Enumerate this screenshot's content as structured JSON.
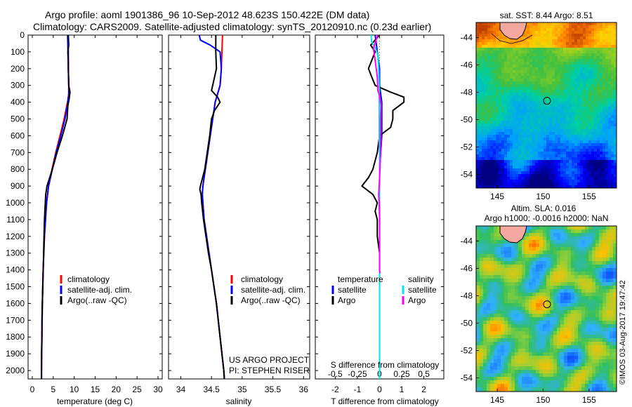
{
  "header": {
    "line1": "Argo profile: aoml 1901386_96 10-Sep-2012 48.623S 150.422E (DM data)",
    "line2": "Climatology: CARS2009. Satellite-adjusted climatology: synTS_20120910.nc (0.23d earlier)"
  },
  "colors": {
    "climatology": "#ff0000",
    "satellite": "#0000ff",
    "argo": "#000000",
    "salinity_satellite": "#00e5ee",
    "salinity_argo": "#ff00ff"
  },
  "credit": "©IMOS 03-Aug-2017 19:47:42",
  "chart_data": [
    {
      "id": "temperature-profile",
      "type": "line",
      "xlabel": "temperature (deg C)",
      "xlim": [
        -1,
        31
      ],
      "xticks": [
        0,
        5,
        10,
        15,
        20,
        25,
        30
      ],
      "ylim": [
        2050,
        0
      ],
      "yticks": [
        0,
        100,
        200,
        300,
        400,
        500,
        600,
        700,
        800,
        900,
        1000,
        1100,
        1200,
        1300,
        1400,
        1500,
        1600,
        1700,
        1800,
        1900,
        2000
      ],
      "legend": [
        "climatology",
        "satellite-adj. clim.",
        "Argo(..raw -QC)"
      ],
      "series": [
        {
          "name": "climatology",
          "color": "#ff0000",
          "depth": [
            0,
            100,
            200,
            300,
            350,
            400,
            500,
            600,
            700,
            800,
            900,
            1000,
            1200,
            1400,
            1600,
            1800,
            2000,
            2050
          ],
          "values": [
            8.4,
            8.5,
            8.6,
            8.7,
            8.7,
            8.4,
            7.6,
            6.6,
            5.6,
            4.7,
            3.9,
            3.4,
            2.9,
            2.6,
            2.4,
            2.3,
            2.2,
            2.2
          ]
        },
        {
          "name": "satellite-adj. clim.",
          "color": "#0000ff",
          "depth": [
            0,
            100,
            200,
            300,
            350,
            400,
            500,
            600,
            700,
            800,
            900,
            1000,
            1200,
            1400,
            1600,
            1800,
            2000,
            2050
          ],
          "values": [
            8.5,
            8.6,
            8.6,
            8.7,
            8.7,
            8.5,
            7.8,
            6.8,
            5.7,
            4.8,
            3.9,
            3.4,
            2.9,
            2.6,
            2.4,
            2.3,
            2.2,
            2.2
          ]
        },
        {
          "name": "Argo(..raw -QC)",
          "color": "#000000",
          "depth": [
            0,
            60,
            100,
            150,
            200,
            300,
            340,
            380,
            420,
            500,
            600,
            700,
            800,
            900,
            950,
            1000,
            1100,
            1200,
            1300,
            1400,
            1500,
            1600,
            1700,
            1800,
            1900,
            2000,
            2050
          ],
          "values": [
            8.6,
            8.7,
            8.5,
            8.6,
            8.6,
            8.7,
            9.0,
            8.8,
            8.5,
            8.3,
            7.2,
            5.9,
            4.8,
            3.5,
            3.2,
            3.1,
            2.9,
            2.8,
            2.7,
            2.6,
            2.5,
            2.4,
            2.3,
            2.3,
            2.2,
            2.2,
            2.2
          ]
        }
      ]
    },
    {
      "id": "salinity-profile",
      "type": "line",
      "xlabel": "salinity",
      "xlim": [
        33.8,
        36.1
      ],
      "xticks": [
        34,
        34.5,
        35,
        35.5,
        36
      ],
      "ylim": [
        2050,
        0
      ],
      "legend": [
        "climatology",
        "satellite-adj. clim.",
        "Argo(..raw -QC)"
      ],
      "annotation": [
        "US ARGO PROJECT",
        "PI: STEPHEN RISER"
      ],
      "series": [
        {
          "name": "climatology",
          "color": "#ff0000",
          "depth": [
            0,
            100,
            200,
            300,
            350,
            400,
            500,
            600,
            700,
            800,
            900,
            950,
            1000,
            1100,
            1200,
            1300,
            1400,
            1500,
            1600,
            1800,
            2000,
            2050
          ],
          "values": [
            34.68,
            34.67,
            34.66,
            34.64,
            34.6,
            34.56,
            34.52,
            34.48,
            34.44,
            34.4,
            34.36,
            34.35,
            34.36,
            34.38,
            34.42,
            34.46,
            34.5,
            34.54,
            34.58,
            34.64,
            34.7,
            34.71
          ]
        },
        {
          "name": "satellite-adj. clim.",
          "color": "#0000ff",
          "depth": [
            0,
            30,
            60,
            100,
            200,
            300,
            350,
            400,
            500,
            600,
            700,
            800,
            900,
            950,
            1000,
            1100,
            1200,
            1300,
            1400,
            1500,
            1600,
            1800,
            2000,
            2050
          ],
          "values": [
            34.3,
            34.32,
            34.48,
            34.64,
            34.66,
            34.64,
            34.6,
            34.56,
            34.52,
            34.48,
            34.44,
            34.4,
            34.36,
            34.35,
            34.36,
            34.38,
            34.42,
            34.46,
            34.5,
            34.54,
            34.58,
            34.64,
            34.7,
            34.71
          ]
        },
        {
          "name": "Argo(..raw -QC)",
          "color": "#000000",
          "depth": [
            0,
            100,
            200,
            300,
            330,
            370,
            400,
            450,
            500,
            600,
            700,
            800,
            900,
            920,
            950,
            1000,
            1100,
            1200,
            1300,
            1400,
            1500,
            1600,
            1800,
            2000,
            2050
          ],
          "values": [
            34.57,
            34.57,
            34.58,
            34.52,
            34.5,
            34.6,
            34.64,
            34.55,
            34.5,
            34.47,
            34.43,
            34.39,
            34.32,
            34.31,
            34.33,
            34.34,
            34.37,
            34.41,
            34.45,
            34.5,
            34.54,
            34.58,
            34.64,
            34.7,
            34.71
          ]
        }
      ]
    },
    {
      "id": "difference-profile",
      "type": "line",
      "xlabel": "T difference from climatology",
      "xlabel_top": "S difference from climatology",
      "xlim": [
        -2.9,
        2.9
      ],
      "xticks": [
        -2,
        -1,
        0,
        1,
        2
      ],
      "top_ticklabels": [
        "-0.5",
        "-0.25",
        "0",
        "0.25",
        "0.5"
      ],
      "top_tick_positions": [
        -2,
        -1,
        0,
        1,
        2
      ],
      "ylim": [
        2050,
        0
      ],
      "legend_groups": [
        {
          "title": "temperature",
          "items": [
            "satellite",
            "Argo"
          ]
        },
        {
          "title": "salinity",
          "items": [
            "satellite",
            "Argo"
          ]
        }
      ],
      "series": [
        {
          "name": "temperature satellite",
          "color": "#0000ff",
          "depth": [
            0,
            100,
            200,
            300,
            400,
            500,
            600,
            800,
            1000,
            1200,
            1400,
            1600,
            1800,
            2000,
            2050
          ],
          "values": [
            -0.2,
            -0.1,
            0.0,
            0.0,
            0.1,
            0.1,
            0.1,
            0.0,
            0.0,
            0.0,
            0.0,
            0.0,
            0.0,
            0.0,
            0.0
          ]
        },
        {
          "name": "temperature Argo",
          "color": "#000000",
          "depth": [
            0,
            60,
            100,
            200,
            300,
            340,
            370,
            400,
            450,
            500,
            550,
            600,
            700,
            800,
            850,
            900,
            950,
            1000,
            1050,
            1100,
            1200,
            1300,
            1400,
            1500,
            1600,
            1800,
            2000,
            2050
          ],
          "values": [
            0.0,
            -0.4,
            -0.2,
            -0.5,
            -0.2,
            0.5,
            1.1,
            1.1,
            0.6,
            0.6,
            0.5,
            0.0,
            -0.1,
            -0.3,
            -0.5,
            -0.8,
            -0.3,
            -0.1,
            -0.2,
            -0.1,
            -0.1,
            0.0,
            0.0,
            0.0,
            0.0,
            0.0,
            0.0,
            0.0
          ]
        },
        {
          "name": "salinity satellite",
          "color": "#00e5ee",
          "depth": [
            0,
            40,
            80,
            120,
            200,
            300,
            400,
            500,
            600,
            700,
            800,
            1000,
            1200,
            1400,
            1600,
            1800,
            2000,
            2050
          ],
          "values": [
            -0.38,
            -0.36,
            -0.18,
            -0.08,
            -0.04,
            -0.02,
            -0.02,
            -0.02,
            -0.02,
            0.0,
            0.0,
            0.0,
            0.0,
            0.0,
            0.0,
            0.0,
            0.0,
            0.0
          ]
        },
        {
          "name": "salinity Argo",
          "color": "#ff00ff",
          "depth": [
            0,
            30,
            80,
            150,
            250,
            330,
            360,
            420,
            500,
            600,
            700,
            800,
            900,
            950,
            1000,
            1100,
            1200,
            1300,
            1400,
            1420
          ],
          "values": [
            -0.08,
            -0.16,
            -0.28,
            -0.2,
            -0.1,
            -0.08,
            0.0,
            0.06,
            0.04,
            0.04,
            0.04,
            0.02,
            -0.02,
            -0.04,
            -0.02,
            0.0,
            0.0,
            0.0,
            0.0,
            0.02
          ]
        }
      ]
    },
    {
      "id": "sst-map",
      "type": "heatmap",
      "title": "sat. SST: 8.44  Argo: 8.51",
      "xticks": [
        145,
        150,
        155
      ],
      "yticks": [
        "-44",
        "-46",
        "-48",
        "-50",
        "-52",
        "-54"
      ],
      "xlim": [
        142.7,
        158.0
      ],
      "ylim": [
        -55.0,
        -42.9
      ],
      "argo_position": [
        150.422,
        -48.623
      ]
    },
    {
      "id": "sla-map",
      "type": "heatmap",
      "title": "Altim. SLA: 0.016",
      "subtitle": "Argo h1000: -0.0016 h2000: NaN",
      "xticks": [
        145,
        150,
        155
      ],
      "yticks": [
        "-44",
        "-46",
        "-48",
        "-50",
        "-52",
        "-54"
      ],
      "xlim": [
        142.7,
        158.0
      ],
      "ylim": [
        -55.0,
        -42.9
      ],
      "argo_position": [
        150.422,
        -48.623
      ]
    }
  ]
}
